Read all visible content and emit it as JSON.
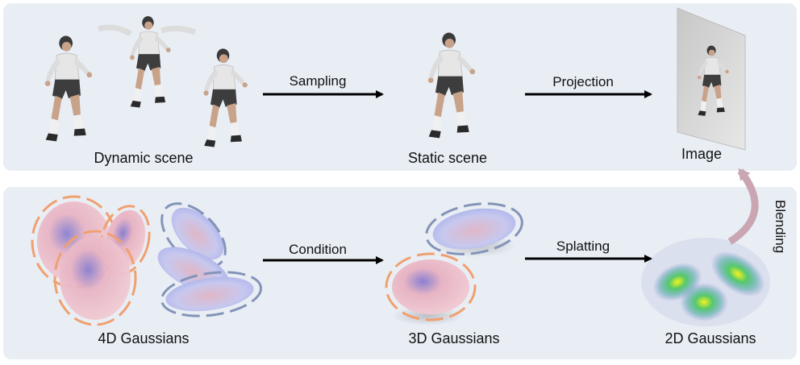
{
  "top_row": {
    "dynamic_scene_label": "Dynamic scene",
    "sampling_label": "Sampling",
    "static_scene_label": "Static scene",
    "projection_label": "Projection",
    "image_label": "Image"
  },
  "bottom_row": {
    "gaussians_4d_label": "4D Gaussians",
    "condition_label": "Condition",
    "gaussians_3d_label": "3D Gaussians",
    "splatting_label": "Splatting",
    "gaussians_2d_label": "2D Gaussians"
  },
  "blending_label": "Blending",
  "colors": {
    "panel_bg": "#e9eef5",
    "orange_outline": "#f0a070",
    "blue_outline": "#8494b8",
    "arrow": "#000000",
    "blend_arrow": "#c9a6b2"
  },
  "icons": [
    "player-figure-icon",
    "gaussian-ellipsoid-icon",
    "gaussian-splat-heatmap-icon"
  ]
}
